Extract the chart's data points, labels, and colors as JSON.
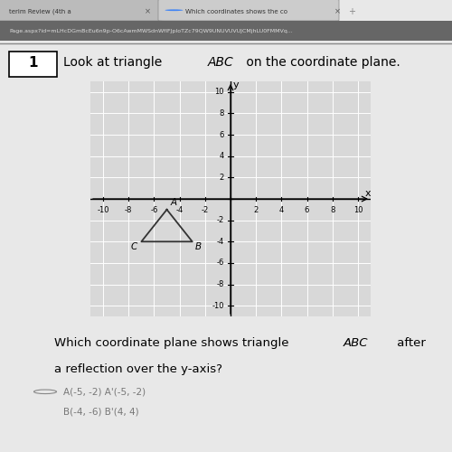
{
  "triangle_A": [
    -5,
    -1
  ],
  "triangle_B": [
    -3,
    -4
  ],
  "triangle_C": [
    -7,
    -4
  ],
  "label_A": "A",
  "label_B": "B",
  "label_C": "C",
  "xlim": [
    -11,
    11
  ],
  "ylim": [
    -11,
    11
  ],
  "xticks": [
    -10,
    -8,
    -6,
    -4,
    -2,
    2,
    4,
    6,
    8,
    10
  ],
  "yticks": [
    -10,
    -8,
    -6,
    -4,
    -2,
    2,
    4,
    6,
    8,
    10
  ],
  "triangle_color": "#333333",
  "page_bg": "#c8c8c8",
  "content_bg": "#e8e8e8",
  "browser_bar_color": "#555555",
  "tab_color": "#dddddd",
  "plot_bg": "#d8d8d8"
}
